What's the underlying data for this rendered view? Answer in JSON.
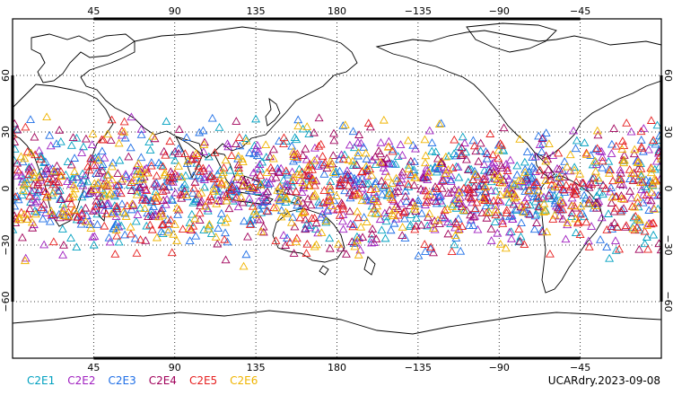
{
  "map": {
    "lon_ticks": [
      "45",
      "90",
      "135",
      "180",
      "−135",
      "−90",
      "−45"
    ],
    "lat_ticks": [
      "60",
      "30",
      "0",
      "−30",
      "−60"
    ],
    "lon_range": [
      0,
      360
    ],
    "lat_range": [
      -90,
      90
    ],
    "central_longitude": 180,
    "grid": "dotted",
    "marker": "open-triangle"
  },
  "legend": {
    "items": [
      {
        "label": "C2E1",
        "color": "#00a0c0"
      },
      {
        "label": "C2E2",
        "color": "#a020c0"
      },
      {
        "label": "C2E3",
        "color": "#1e6ee6"
      },
      {
        "label": "C2E4",
        "color": "#a0005a"
      },
      {
        "label": "C2E5",
        "color": "#e61e1e"
      },
      {
        "label": "C2E6",
        "color": "#f0b400"
      }
    ]
  },
  "stamp": "UCARdry.2023-09-08",
  "chart_data": {
    "type": "scatter",
    "title": "",
    "xlabel": "",
    "ylabel": "",
    "xlim": [
      0,
      360
    ],
    "ylim": [
      -90,
      90
    ],
    "x_tick_labels": [
      "45",
      "90",
      "135",
      "180",
      "−135",
      "−90",
      "−45"
    ],
    "y_tick_labels": [
      "60",
      "30",
      "0",
      "−30",
      "−60"
    ],
    "series": [
      {
        "name": "C2E1",
        "lat_band": [
          -45,
          45
        ],
        "lon_range": [
          0,
          360
        ]
      },
      {
        "name": "C2E2",
        "lat_band": [
          -45,
          45
        ],
        "lon_range": [
          0,
          360
        ]
      },
      {
        "name": "C2E3",
        "lat_band": [
          -45,
          45
        ],
        "lon_range": [
          0,
          360
        ]
      },
      {
        "name": "C2E4",
        "lat_band": [
          -45,
          45
        ],
        "lon_range": [
          0,
          360
        ]
      },
      {
        "name": "C2E5",
        "lat_band": [
          -45,
          45
        ],
        "lon_range": [
          0,
          360
        ]
      },
      {
        "name": "C2E6",
        "lat_band": [
          -45,
          45
        ],
        "lon_range": [
          0,
          360
        ]
      }
    ]
  }
}
